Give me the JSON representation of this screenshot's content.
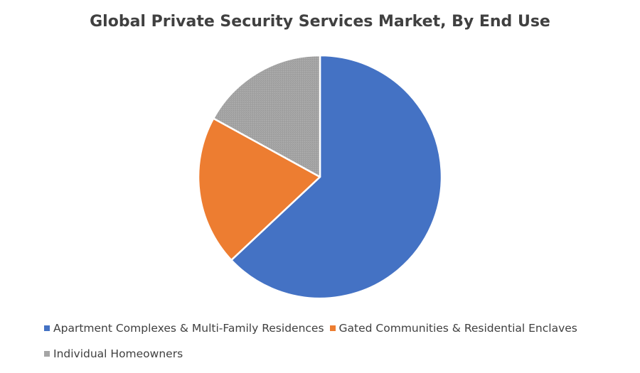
{
  "chart_data": {
    "type": "pie",
    "title": "Global Private Security Services Market, By End Use",
    "slices": [
      {
        "name": "Apartment Complexes & Multi-Family Residences",
        "value": 63,
        "color": "#4472C4"
      },
      {
        "name": "Gated Communities & Residential Enclaves",
        "value": 20,
        "color": "#ED7D31"
      },
      {
        "name": "Individual Homeowners",
        "value": 17,
        "color": "#A5A5A5"
      }
    ],
    "legend_position": "bottom",
    "start_angle_deg": 0,
    "direction": "clockwise"
  }
}
